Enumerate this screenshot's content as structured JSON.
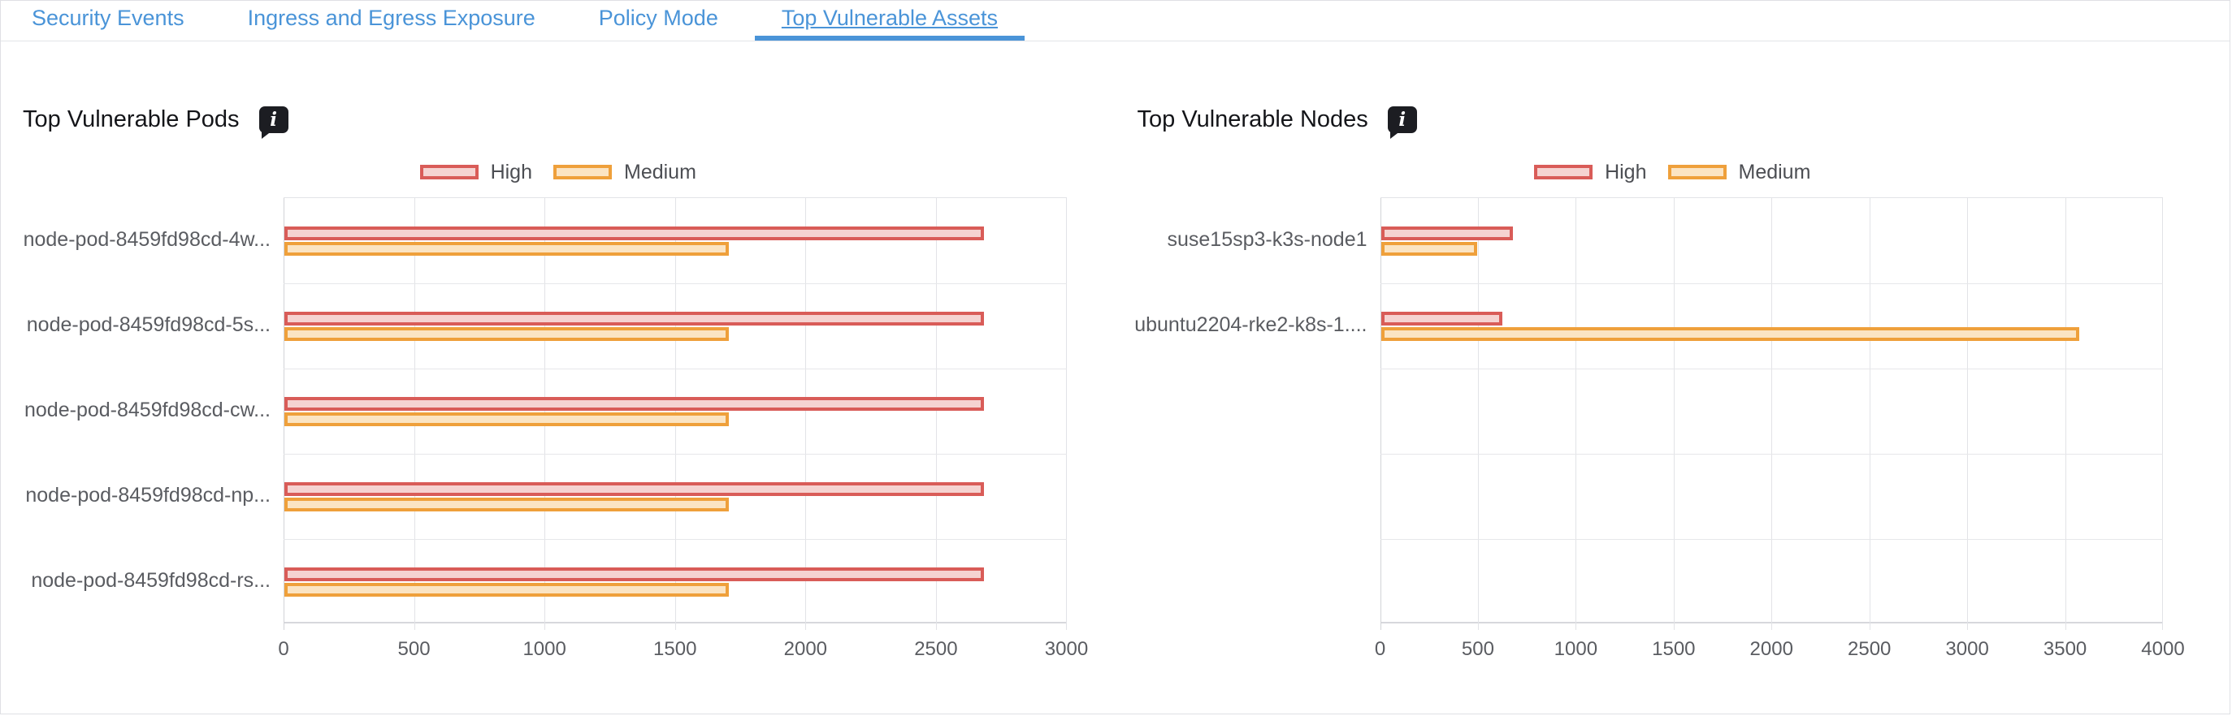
{
  "tabs": [
    {
      "label": "Security Events",
      "active": false
    },
    {
      "label": "Ingress and Egress Exposure",
      "active": false
    },
    {
      "label": "Policy Mode",
      "active": false
    },
    {
      "label": "Top Vulnerable Assets",
      "active": true
    }
  ],
  "icons": {
    "info_glyph": "i"
  },
  "colors": {
    "tab_blue": "#4a94d8",
    "high_border": "#d95c58",
    "high_fill": "#f5d3d1",
    "medium_border": "#efa03b",
    "medium_fill": "#fbe4c3"
  },
  "chart_data": [
    {
      "type": "bar",
      "orientation": "horizontal",
      "title": "Top Vulnerable Pods",
      "legend": [
        {
          "label": "High",
          "color_key": "high"
        },
        {
          "label": "Medium",
          "color_key": "medium"
        }
      ],
      "x_ticks": [
        "0",
        "500",
        "1000",
        "1500",
        "2000",
        "2500",
        "3000"
      ],
      "x_max": 3000,
      "row_slots": 5,
      "grid": true,
      "legend_position": "top-center",
      "rows": [
        {
          "label": "node-pod-8459fd98cd-4w...",
          "high": 2660,
          "medium": 1680
        },
        {
          "label": "node-pod-8459fd98cd-5s...",
          "high": 2660,
          "medium": 1680
        },
        {
          "label": "node-pod-8459fd98cd-cw...",
          "high": 2660,
          "medium": 1680
        },
        {
          "label": "node-pod-8459fd98cd-np...",
          "high": 2660,
          "medium": 1680
        },
        {
          "label": "node-pod-8459fd98cd-rs...",
          "high": 2660,
          "medium": 1680
        }
      ]
    },
    {
      "type": "bar",
      "orientation": "horizontal",
      "title": "Top Vulnerable Nodes",
      "legend": [
        {
          "label": "High",
          "color_key": "high"
        },
        {
          "label": "Medium",
          "color_key": "medium"
        }
      ],
      "x_ticks": [
        "0",
        "500",
        "1000",
        "1500",
        "2000",
        "2500",
        "3000",
        "3500",
        "4000"
      ],
      "x_max": 4000,
      "row_slots": 5,
      "grid": true,
      "legend_position": "top-center",
      "rows": [
        {
          "label": "suse15sp3-k3s-node1",
          "high": 640,
          "medium": 460
        },
        {
          "label": "ubuntu2204-rke2-k8s-1....",
          "high": 590,
          "medium": 3540
        }
      ]
    }
  ]
}
